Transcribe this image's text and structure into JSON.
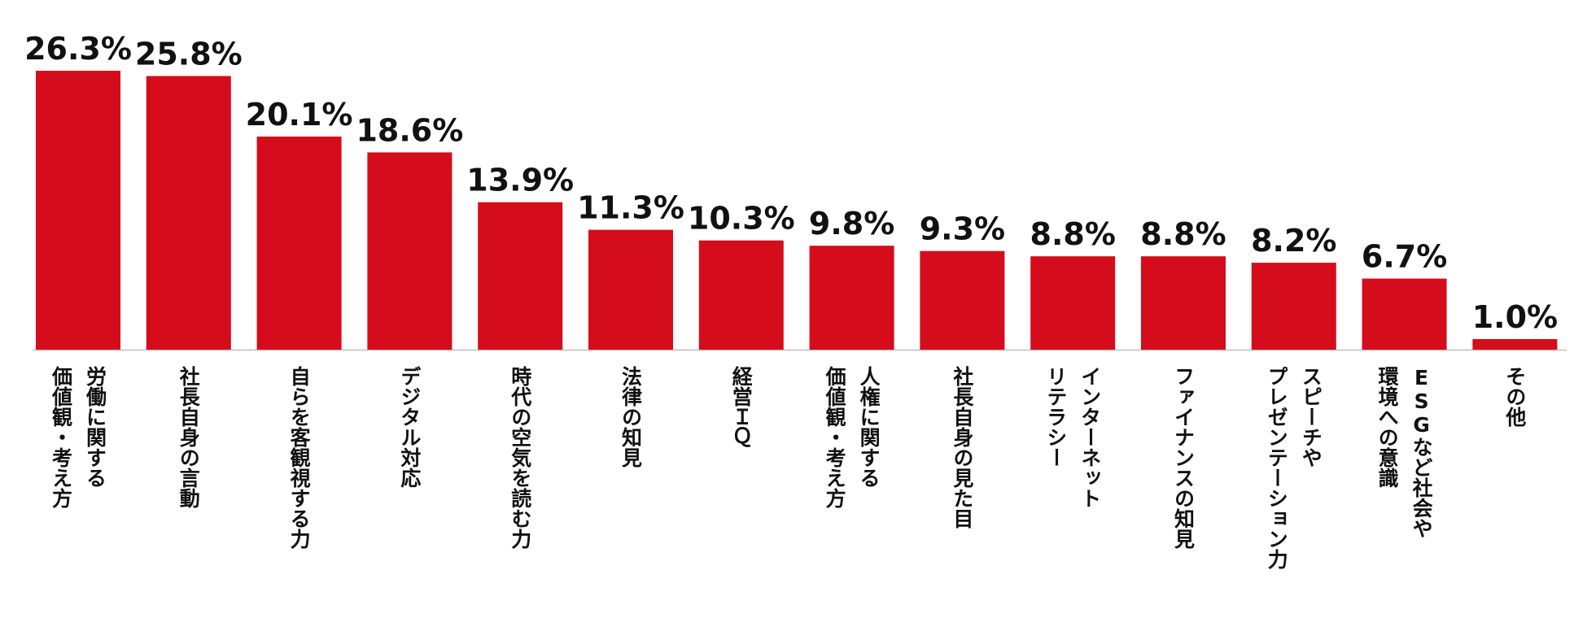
{
  "chart_data": {
    "type": "bar",
    "categories": [
      [
        "労働に関する",
        "価値観・考え方"
      ],
      [
        "社長自身の言動"
      ],
      [
        "自らを客観視する力"
      ],
      [
        "デジタル対応"
      ],
      [
        "時代の空気を読む力"
      ],
      [
        "法律の知見"
      ],
      [
        "経営ＩＱ"
      ],
      [
        "人権に関する",
        "価値観・考え方"
      ],
      [
        "社長自身の見た目"
      ],
      [
        "インターネット",
        "リテラシー"
      ],
      [
        "ファイナンスの知見"
      ],
      [
        "スピーチや",
        "プレゼンテーション力"
      ],
      [
        "ESGなど社会や",
        "環境への意識"
      ],
      [
        "その他"
      ]
    ],
    "values": [
      26.3,
      25.8,
      20.1,
      18.6,
      13.9,
      11.3,
      10.3,
      9.8,
      9.3,
      8.8,
      8.8,
      8.2,
      6.7,
      1.0
    ],
    "value_labels": [
      "26.3%",
      "25.8%",
      "20.1%",
      "18.6%",
      "13.9%",
      "11.3%",
      "10.3%",
      "9.8%",
      "9.3%",
      "8.8%",
      "8.8%",
      "8.2%",
      "6.7%",
      "1.0%"
    ],
    "ylim": [
      0,
      26.3
    ],
    "bar_color": "#D50C1B",
    "baseline_color": "#BFBFBF",
    "grid": false,
    "legend": "none"
  }
}
